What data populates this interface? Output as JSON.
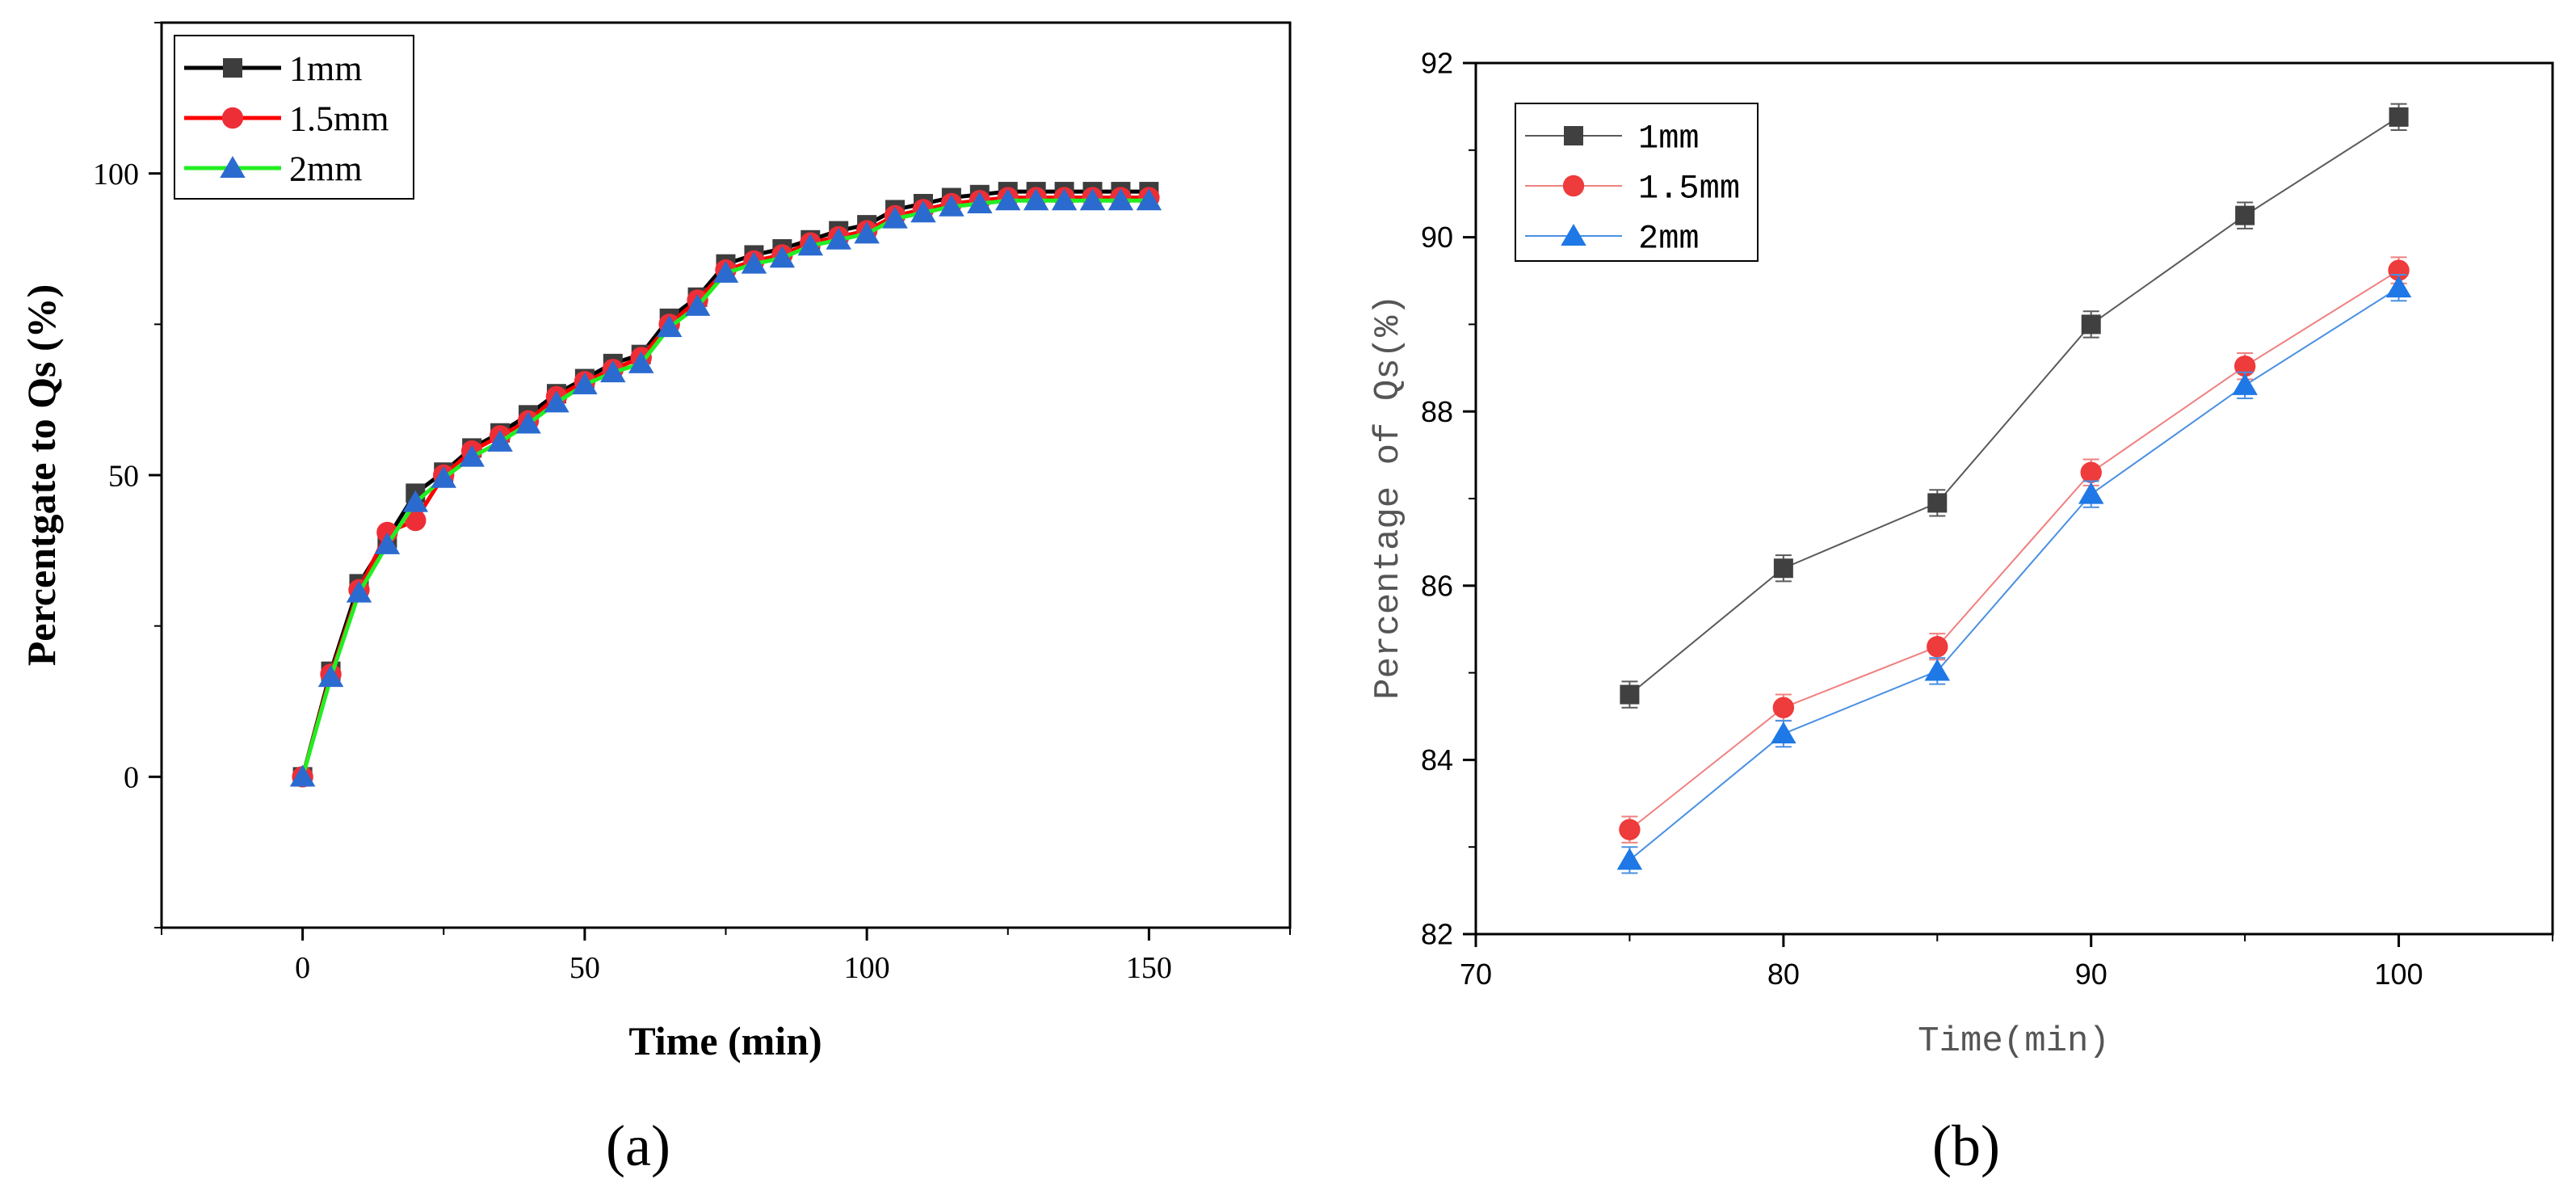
{
  "chart_data": [
    {
      "panel": "a",
      "caption": "(a)",
      "type": "line",
      "title": "",
      "xlabel": "Time (min)",
      "ylabel": "Percentgate to Qs (%)",
      "xlim": [
        -25,
        175
      ],
      "ylim": [
        -25,
        125
      ],
      "xticks": [
        0,
        50,
        100,
        150
      ],
      "yticks": [
        0,
        50,
        100
      ],
      "grid": false,
      "legend_position": "top-left",
      "x": [
        0,
        5,
        10,
        15,
        20,
        25,
        30,
        35,
        40,
        45,
        50,
        55,
        60,
        65,
        70,
        75,
        80,
        85,
        90,
        95,
        100,
        105,
        110,
        115,
        120,
        125,
        130,
        135,
        140,
        145,
        150
      ],
      "series": [
        {
          "name": "1mm",
          "color": "#000000",
          "marker_color": "#3d3d3d",
          "marker": "square",
          "values": [
            0,
            17.5,
            32,
            39.5,
            47,
            50.5,
            54.5,
            57,
            60,
            63.5,
            66,
            68.5,
            70,
            76,
            79.5,
            85,
            86.5,
            87.5,
            89,
            90.5,
            91.5,
            94,
            95,
            96,
            96.5,
            97,
            97,
            97,
            97,
            97,
            97
          ]
        },
        {
          "name": "1.5mm",
          "color": "#ff0000",
          "marker_color": "#ee2e36",
          "marker": "circle",
          "values": [
            0,
            17,
            31,
            40.5,
            42.5,
            50,
            54,
            56.5,
            59,
            63,
            65.5,
            67.5,
            69.5,
            75,
            79,
            84,
            85.5,
            86.5,
            88.5,
            89.5,
            90.5,
            93,
            94,
            95,
            95.5,
            96,
            96,
            96,
            96,
            96,
            96
          ]
        },
        {
          "name": "2mm",
          "color": "#22ee22",
          "marker_color": "#2b6bd0",
          "marker": "triangle",
          "values": [
            0,
            16.5,
            30.5,
            38.5,
            45.5,
            49.5,
            53,
            55.5,
            58.5,
            62,
            65,
            67,
            68.5,
            74.5,
            78,
            83.5,
            85,
            86,
            88,
            89,
            90,
            92.5,
            93.5,
            94.5,
            95,
            95.5,
            95.5,
            95.5,
            95.5,
            95.5,
            95.5
          ]
        }
      ]
    },
    {
      "panel": "b",
      "caption": "(b)",
      "type": "line",
      "title": "",
      "xlabel": "Time(min)",
      "ylabel": "Percentage of Qs(%)",
      "xlim": [
        70,
        105
      ],
      "ylim": [
        82,
        92
      ],
      "xticks": [
        70,
        80,
        90,
        100
      ],
      "yticks": [
        82,
        84,
        86,
        88,
        90,
        92
      ],
      "grid": false,
      "legend_position": "top-left",
      "x": [
        75,
        80,
        85,
        90,
        95,
        100
      ],
      "series": [
        {
          "name": "1mm",
          "color": "#5a5a5a",
          "marker_color": "#404040",
          "marker": "square",
          "values": [
            84.75,
            86.2,
            86.95,
            89.0,
            90.25,
            91.38
          ],
          "error": [
            0.15,
            0.15,
            0.15,
            0.15,
            0.15,
            0.15
          ]
        },
        {
          "name": "1.5mm",
          "color": "#f08080",
          "marker_color": "#ee3b3b",
          "marker": "circle",
          "values": [
            83.2,
            84.6,
            85.3,
            87.3,
            88.52,
            89.62
          ],
          "error": [
            0.15,
            0.15,
            0.15,
            0.15,
            0.15,
            0.15
          ]
        },
        {
          "name": "2mm",
          "color": "#4a90e2",
          "marker_color": "#1e78e6",
          "marker": "triangle",
          "values": [
            82.85,
            84.3,
            85.02,
            87.05,
            88.3,
            89.42
          ],
          "error": [
            0.15,
            0.15,
            0.15,
            0.15,
            0.15,
            0.15
          ]
        }
      ]
    }
  ]
}
